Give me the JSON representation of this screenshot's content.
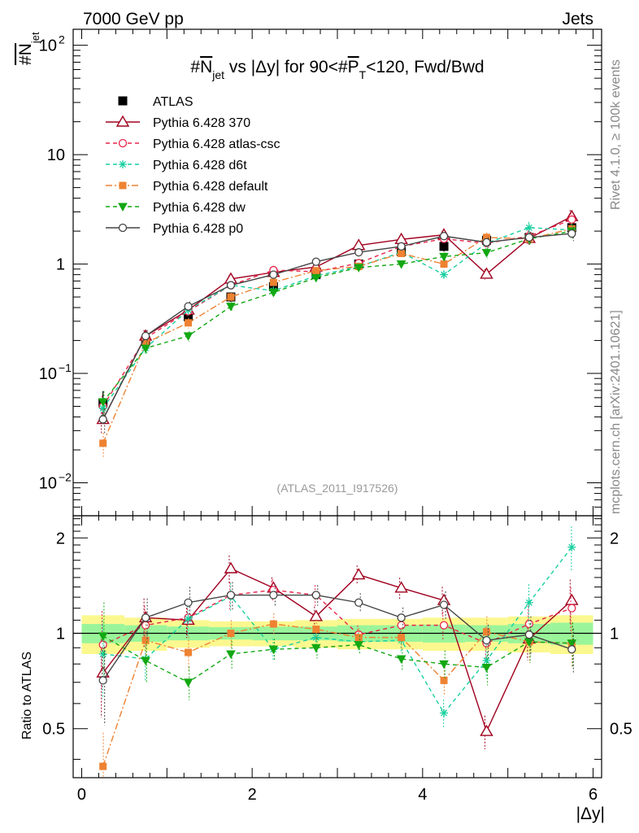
{
  "header": {
    "left": "7000 GeV pp",
    "right": "Jets",
    "title_prefix": "#",
    "title_n": "N",
    "title_sub": "jet",
    "title_mid": " vs |Δy| for 90<#",
    "title_p": "P",
    "title_psub": "T",
    "title_end": "<120, Fwd/Bwd",
    "ylabel": "#N",
    "ylabel_sub": "jet",
    "side_top": "Rivet 4.1.0, ≥ 100k events",
    "side_bottom": "mcplots.cern.ch [arXiv:2401.10621]",
    "watermark": "(ATLAS_2011_I917526)",
    "ratio_ylabel": "Ratio to ATLAS",
    "xlabel": "|Δy|"
  },
  "ticks": {
    "main_y": [
      {
        "e": "2",
        "label": "10",
        "sup": "2"
      },
      {
        "e": "1",
        "label": "10",
        "sup": ""
      },
      {
        "e": "0",
        "label": "1",
        "sup": ""
      },
      {
        "e": "-1",
        "label": "10",
        "sup": "−1"
      },
      {
        "e": "-2",
        "label": "10",
        "sup": "−2"
      }
    ],
    "ratio_y": [
      "2",
      "1",
      "0.5"
    ],
    "x": [
      "0",
      "2",
      "4",
      "6"
    ]
  },
  "chart_data": {
    "type": "scatter",
    "x": [
      0.25,
      0.75,
      1.25,
      1.75,
      2.25,
      2.75,
      3.25,
      3.75,
      4.25,
      4.75,
      5.25,
      5.75
    ],
    "xlim": [
      -0.1,
      6.1
    ],
    "main_ylim": [
      0.005,
      140
    ],
    "ratio_ylim": [
      0.35,
      2.35
    ],
    "data": {
      "name": "ATLAS",
      "values": [
        0.054,
        0.2,
        0.33,
        0.5,
        0.62,
        0.8,
        1.0,
        1.3,
        1.45,
        1.65,
        1.75,
        2.15
      ],
      "errors": [
        0.015,
        0.03,
        0.04,
        0.05,
        0.05,
        0.06,
        0.07,
        0.1,
        0.15,
        0.2,
        0.25,
        0.35
      ],
      "band_inner": [
        0.07,
        0.06,
        0.05,
        0.045,
        0.05,
        0.05,
        0.06,
        0.06,
        0.065,
        0.06,
        0.07,
        0.08
      ],
      "band_outer": [
        0.14,
        0.12,
        0.1,
        0.09,
        0.09,
        0.1,
        0.11,
        0.11,
        0.12,
        0.12,
        0.13,
        0.14
      ]
    },
    "series": [
      {
        "name": "Pythia 6.428 370",
        "color": "#a0001e",
        "marker": "triangle-open",
        "dash": "",
        "values": [
          0.038,
          0.22,
          0.38,
          0.73,
          0.84,
          0.94,
          1.48,
          1.68,
          1.85,
          0.81,
          1.72,
          2.72
        ],
        "ratio": [
          0.75,
          1.12,
          1.1,
          1.6,
          1.39,
          1.13,
          1.53,
          1.39,
          1.27,
          0.49,
          0.96,
          1.27
        ]
      },
      {
        "name": "Pythia 6.428 atlas-csc",
        "color": "#e8244a",
        "marker": "circle-open",
        "dash": "5,4",
        "values": [
          0.05,
          0.21,
          0.37,
          0.64,
          0.88,
          0.85,
          1.02,
          1.45,
          1.7,
          1.55,
          1.8,
          2.55
        ],
        "ratio": [
          0.92,
          1.06,
          1.12,
          1.32,
          1.37,
          1.32,
          0.99,
          1.06,
          1.06,
          0.93,
          1.07,
          1.2
        ]
      },
      {
        "name": "Pythia 6.428 d6t",
        "color": "#19cfa0",
        "marker": "star",
        "dash": "5,4",
        "values": [
          0.048,
          0.17,
          0.38,
          0.64,
          0.57,
          0.78,
          0.95,
          1.28,
          0.8,
          1.55,
          2.15,
          2.05
        ],
        "ratio": [
          0.86,
          0.83,
          1.11,
          1.31,
          0.89,
          0.97,
          0.94,
          0.95,
          0.56,
          0.82,
          1.25,
          1.87
        ]
      },
      {
        "name": "Pythia 6.428 default",
        "color": "#ee8232",
        "marker": "square",
        "dash": "8,3,2,3",
        "values": [
          0.023,
          0.19,
          0.29,
          0.5,
          0.68,
          0.87,
          0.95,
          1.25,
          1.0,
          1.75,
          1.7,
          2.1
        ],
        "ratio": [
          0.38,
          0.95,
          0.87,
          1.0,
          1.07,
          1.03,
          0.97,
          0.97,
          0.71,
          1.01,
          0.94,
          0.93
        ]
      },
      {
        "name": "Pythia 6.428 dw",
        "color": "#12a812",
        "marker": "triangle-down",
        "dash": "5,4",
        "values": [
          0.055,
          0.17,
          0.22,
          0.41,
          0.55,
          0.75,
          0.93,
          1.0,
          1.17,
          1.27,
          1.7,
          2.0
        ],
        "ratio": [
          0.98,
          0.82,
          0.7,
          0.86,
          0.89,
          0.9,
          0.92,
          0.83,
          0.8,
          0.78,
          0.94,
          0.93
        ]
      },
      {
        "name": "Pythia 6.428 p0",
        "color": "#444444",
        "marker": "circle-open",
        "dash": "",
        "values": [
          0.038,
          0.22,
          0.41,
          0.64,
          0.8,
          1.05,
          1.28,
          1.45,
          1.8,
          1.58,
          1.75,
          1.9
        ],
        "ratio": [
          0.71,
          1.12,
          1.25,
          1.32,
          1.32,
          1.32,
          1.25,
          1.12,
          1.23,
          0.95,
          0.99,
          0.89
        ]
      }
    ]
  }
}
